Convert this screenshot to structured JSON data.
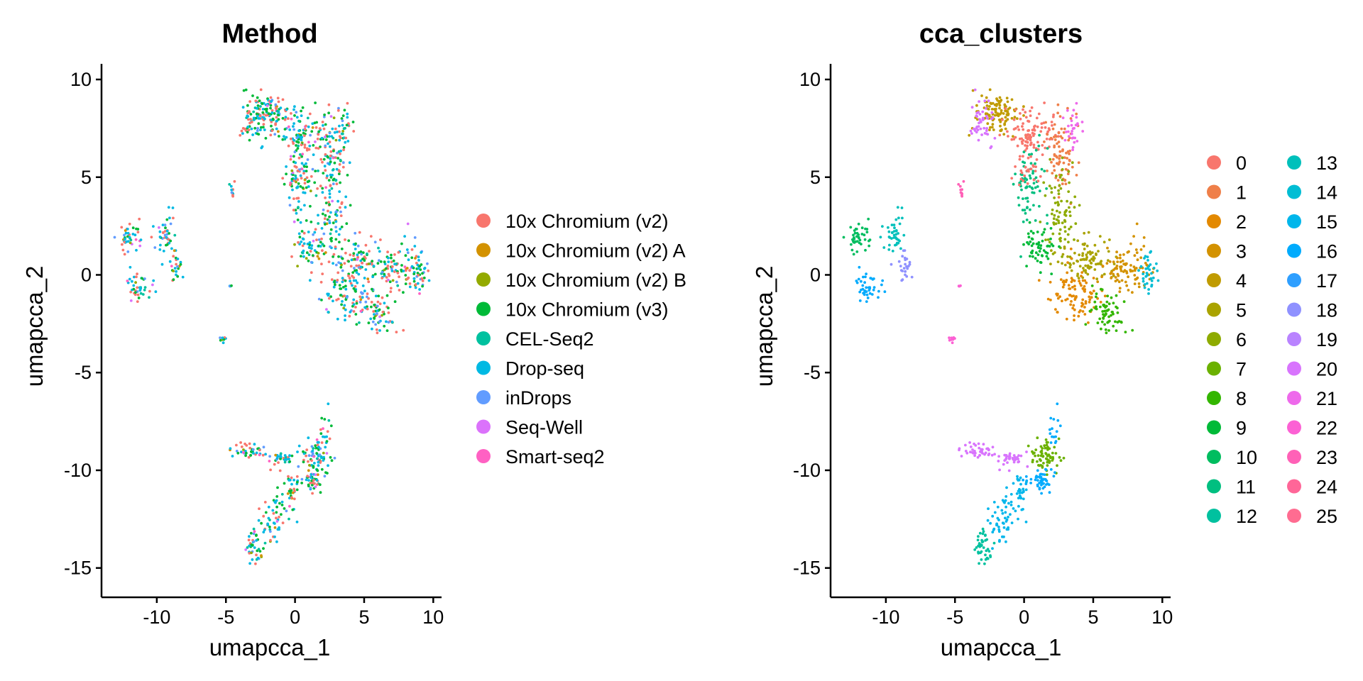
{
  "chart_data": [
    {
      "type": "scatter",
      "title": "Method",
      "xlabel": "umapcca_1",
      "ylabel": "umapcca_2",
      "xlim": [
        -14,
        10.6
      ],
      "ylim": [
        -16.5,
        10.8
      ],
      "xticks": [
        -10,
        -5,
        0,
        5,
        10
      ],
      "yticks": [
        10,
        5,
        0,
        -5,
        -10,
        -15
      ],
      "legend_position": "right",
      "legend": [
        {
          "label": "10x Chromium (v2)",
          "color": "#F8766D"
        },
        {
          "label": "10x Chromium (v2) A",
          "color": "#D39200"
        },
        {
          "label": "10x Chromium (v2) B",
          "color": "#93AA00"
        },
        {
          "label": "10x Chromium (v3)",
          "color": "#00BA38"
        },
        {
          "label": "CEL-Seq2",
          "color": "#00C19F"
        },
        {
          "label": "Drop-seq",
          "color": "#00B9E3"
        },
        {
          "label": "inDrops",
          "color": "#619CFF"
        },
        {
          "label": "Seq-Well",
          "color": "#DB72FB"
        },
        {
          "label": "Smart-seq2",
          "color": "#FF61C3"
        }
      ]
    },
    {
      "type": "scatter",
      "title": "cca_clusters",
      "xlabel": "umapcca_1",
      "ylabel": "umapcca_2",
      "xlim": [
        -14,
        10.6
      ],
      "ylim": [
        -16.5,
        10.8
      ],
      "xticks": [
        -10,
        -5,
        0,
        5,
        10
      ],
      "yticks": [
        10,
        5,
        0,
        -5,
        -10,
        -15
      ],
      "legend_position": "right",
      "legend": [
        {
          "label": "0",
          "color": "#F8766D"
        },
        {
          "label": "1",
          "color": "#EF7F49"
        },
        {
          "label": "2",
          "color": "#E38900"
        },
        {
          "label": "3",
          "color": "#D39200"
        },
        {
          "label": "4",
          "color": "#C09B00"
        },
        {
          "label": "5",
          "color": "#AAA300"
        },
        {
          "label": "6",
          "color": "#8EAB00"
        },
        {
          "label": "7",
          "color": "#6BB100"
        },
        {
          "label": "8",
          "color": "#33B600"
        },
        {
          "label": "9",
          "color": "#00BA38"
        },
        {
          "label": "10",
          "color": "#00BD5F"
        },
        {
          "label": "11",
          "color": "#00BF80"
        },
        {
          "label": "12",
          "color": "#00C19F"
        },
        {
          "label": "13",
          "color": "#00C0BB"
        },
        {
          "label": "14",
          "color": "#00BDD4"
        },
        {
          "label": "15",
          "color": "#00B6EB"
        },
        {
          "label": "16",
          "color": "#00ABFD"
        },
        {
          "label": "17",
          "color": "#2E9FFF"
        },
        {
          "label": "18",
          "color": "#8F91FF"
        },
        {
          "label": "19",
          "color": "#B983FF"
        },
        {
          "label": "20",
          "color": "#D874FD"
        },
        {
          "label": "21",
          "color": "#EE69EB"
        },
        {
          "label": "22",
          "color": "#FC61D4"
        },
        {
          "label": "23",
          "color": "#FF61B7"
        },
        {
          "label": "24",
          "color": "#FF6698"
        },
        {
          "label": "25",
          "color": "#FF6C91"
        }
      ]
    }
  ]
}
